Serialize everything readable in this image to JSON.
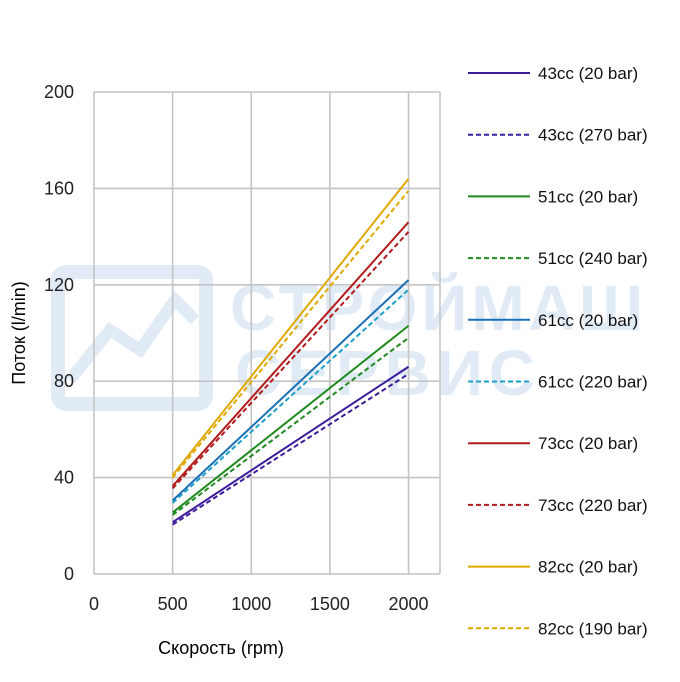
{
  "chart_data": {
    "type": "line",
    "title": "",
    "xlabel": "Скорость  (rpm)",
    "ylabel": "Поток  (l/min)",
    "xlim": [
      0,
      2200
    ],
    "ylim": [
      0,
      200
    ],
    "x_ticks": [
      "0",
      "500",
      "1000",
      "1500",
      "2000"
    ],
    "y_ticks": [
      "0",
      "40",
      "80",
      "120",
      "160",
      "200"
    ],
    "grid": true,
    "legend_position": "right",
    "watermark": "СТРОЙМАШ СЕРВИС",
    "x": [
      500,
      2000
    ],
    "series": [
      {
        "name": "43cc (20 bar)",
        "values": [
          21.5,
          86
        ],
        "color": "#3d1c9c",
        "dash": "solid"
      },
      {
        "name": "43cc (270 bar)",
        "values": [
          20.5,
          83
        ],
        "color": "#3d1c9c",
        "dash": "dashed"
      },
      {
        "name": "51cc (20 bar)",
        "values": [
          25.5,
          103
        ],
        "color": "#1e8a1e",
        "dash": "solid"
      },
      {
        "name": "51cc (240 bar)",
        "values": [
          24.5,
          98
        ],
        "color": "#1e8a1e",
        "dash": "dashed"
      },
      {
        "name": "61cc (20 bar)",
        "values": [
          30.5,
          122
        ],
        "color": "#1b6fb5",
        "dash": "solid"
      },
      {
        "name": "61cc (220 bar)",
        "values": [
          29.5,
          118
        ],
        "color": "#1aa0c8",
        "dash": "dashed"
      },
      {
        "name": "73cc (20 bar)",
        "values": [
          36.5,
          146
        ],
        "color": "#b31b1b",
        "dash": "solid"
      },
      {
        "name": "73cc (220 bar)",
        "values": [
          35.5,
          142
        ],
        "color": "#b31b1b",
        "dash": "dashed"
      },
      {
        "name": "82cc (20 bar)",
        "values": [
          41,
          164
        ],
        "color": "#e0a800",
        "dash": "solid"
      },
      {
        "name": "82cc (190 bar)",
        "values": [
          40,
          159
        ],
        "color": "#e0a800",
        "dash": "dashed"
      }
    ]
  }
}
